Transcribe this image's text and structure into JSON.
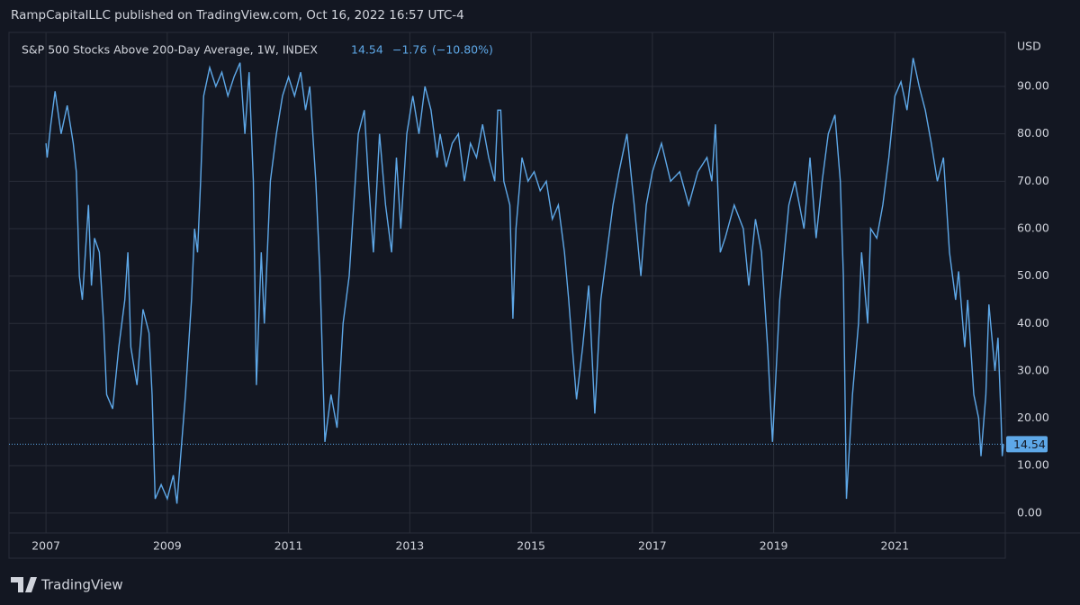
{
  "header": "RampCapitalLLC published on TradingView.com, Oct 16, 2022 16:57 UTC-4",
  "footer": "TradingView",
  "chart_data": {
    "type": "line",
    "title": "S&P 500 Stocks Above 200-Day Average, 1W, INDEX",
    "legend_values": [
      {
        "value": 14.54,
        "label": "14.54"
      },
      {
        "value": -1.76,
        "label": "−1.76"
      },
      {
        "value": -10.8,
        "label": "(−10.80%)"
      }
    ],
    "y_label": "USD",
    "grid": true,
    "xlim": [
      2006.39,
      2022.82
    ],
    "ylim": [
      -4.2,
      101.4
    ],
    "xticks": [
      2007,
      2009,
      2011,
      2013,
      2015,
      2017,
      2019,
      2021
    ],
    "yticks": [
      {
        "value": 0,
        "label": "0.00"
      },
      {
        "value": 10,
        "label": "10.00"
      },
      {
        "value": 20,
        "label": "20.00"
      },
      {
        "value": 30,
        "label": "30.00"
      },
      {
        "value": 40,
        "label": "40.00"
      },
      {
        "value": 50,
        "label": "50.00"
      },
      {
        "value": 60,
        "label": "60.00"
      },
      {
        "value": 70,
        "label": "70.00"
      },
      {
        "value": 80,
        "label": "80.00"
      },
      {
        "value": 90,
        "label": "90.00"
      }
    ],
    "x": [
      2007.0,
      2007.02,
      2007.08,
      2007.15,
      2007.25,
      2007.35,
      2007.45,
      2007.5,
      2007.55,
      2007.6,
      2007.7,
      2007.75,
      2007.8,
      2007.88,
      2007.95,
      2008.0,
      2008.1,
      2008.2,
      2008.3,
      2008.35,
      2008.4,
      2008.5,
      2008.6,
      2008.7,
      2008.75,
      2008.8,
      2008.9,
      2009.0,
      2009.1,
      2009.16,
      2009.3,
      2009.4,
      2009.45,
      2009.5,
      2009.55,
      2009.6,
      2009.7,
      2009.8,
      2009.9,
      2010.0,
      2010.1,
      2010.2,
      2010.28,
      2010.35,
      2010.42,
      2010.47,
      2010.55,
      2010.6,
      2010.7,
      2010.8,
      2010.9,
      2011.0,
      2011.1,
      2011.2,
      2011.28,
      2011.35,
      2011.45,
      2011.52,
      2011.6,
      2011.7,
      2011.8,
      2011.9,
      2012.0,
      2012.15,
      2012.25,
      2012.32,
      2012.4,
      2012.5,
      2012.6,
      2012.7,
      2012.78,
      2012.85,
      2012.95,
      2013.05,
      2013.15,
      2013.25,
      2013.35,
      2013.45,
      2013.5,
      2013.6,
      2013.7,
      2013.8,
      2013.9,
      2014.0,
      2014.1,
      2014.2,
      2014.3,
      2014.4,
      2014.45,
      2014.5,
      2014.55,
      2014.65,
      2014.7,
      2014.75,
      2014.85,
      2014.95,
      2015.05,
      2015.15,
      2015.25,
      2015.35,
      2015.45,
      2015.55,
      2015.62,
      2015.68,
      2015.75,
      2015.85,
      2015.95,
      2016.05,
      2016.15,
      2016.25,
      2016.35,
      2016.45,
      2016.58,
      2016.7,
      2016.81,
      2016.9,
      2017.0,
      2017.15,
      2017.3,
      2017.45,
      2017.6,
      2017.75,
      2017.9,
      2017.98,
      2018.04,
      2018.12,
      2018.2,
      2018.35,
      2018.5,
      2018.59,
      2018.7,
      2018.8,
      2018.9,
      2018.98,
      2019.1,
      2019.25,
      2019.35,
      2019.5,
      2019.6,
      2019.7,
      2019.8,
      2019.9,
      2020.01,
      2020.1,
      2020.15,
      2020.2,
      2020.3,
      2020.4,
      2020.45,
      2020.55,
      2020.6,
      2020.7,
      2020.8,
      2020.9,
      2021.0,
      2021.1,
      2021.2,
      2021.3,
      2021.4,
      2021.5,
      2021.6,
      2021.7,
      2021.8,
      2021.9,
      2022.0,
      2022.05,
      2022.15,
      2022.2,
      2022.3,
      2022.38,
      2022.42,
      2022.5,
      2022.55,
      2022.65,
      2022.7,
      2022.75,
      2022.77,
      2022.79
    ],
    "series": [
      {
        "name": "S&P 500 Stocks Above 200-Day Average",
        "color": "#5ea8e8",
        "values": [
          78,
          75,
          82,
          89,
          80,
          86,
          78,
          72,
          50,
          45,
          65,
          48,
          58,
          55,
          40,
          25,
          22,
          35,
          45,
          55,
          35,
          27,
          43,
          38,
          25,
          3,
          6,
          3,
          8,
          2,
          25,
          45,
          60,
          55,
          70,
          88,
          94,
          90,
          93,
          88,
          92,
          95,
          80,
          93,
          70,
          27,
          55,
          40,
          70,
          80,
          88,
          92,
          88,
          93,
          85,
          90,
          70,
          50,
          15,
          25,
          18,
          40,
          50,
          80,
          85,
          70,
          55,
          80,
          65,
          55,
          75,
          60,
          80,
          88,
          80,
          90,
          85,
          75,
          80,
          73,
          78,
          80,
          70,
          78,
          75,
          82,
          75,
          70,
          85,
          85,
          70,
          65,
          41,
          60,
          75,
          70,
          72,
          68,
          70,
          62,
          65,
          55,
          45,
          35,
          24,
          35,
          48,
          21,
          45,
          55,
          65,
          72,
          80,
          65,
          50,
          65,
          72,
          78,
          70,
          72,
          65,
          72,
          75,
          70,
          82,
          55,
          58,
          65,
          60,
          48,
          62,
          55,
          35,
          15,
          45,
          65,
          70,
          60,
          75,
          58,
          70,
          80,
          84,
          70,
          50,
          3,
          25,
          40,
          55,
          40,
          60,
          58,
          65,
          75,
          88,
          91,
          85,
          96,
          90,
          85,
          78,
          70,
          75,
          55,
          45,
          51,
          35,
          45,
          25,
          20,
          12,
          25,
          44,
          30,
          37,
          20,
          12,
          14.54
        ]
      }
    ]
  }
}
